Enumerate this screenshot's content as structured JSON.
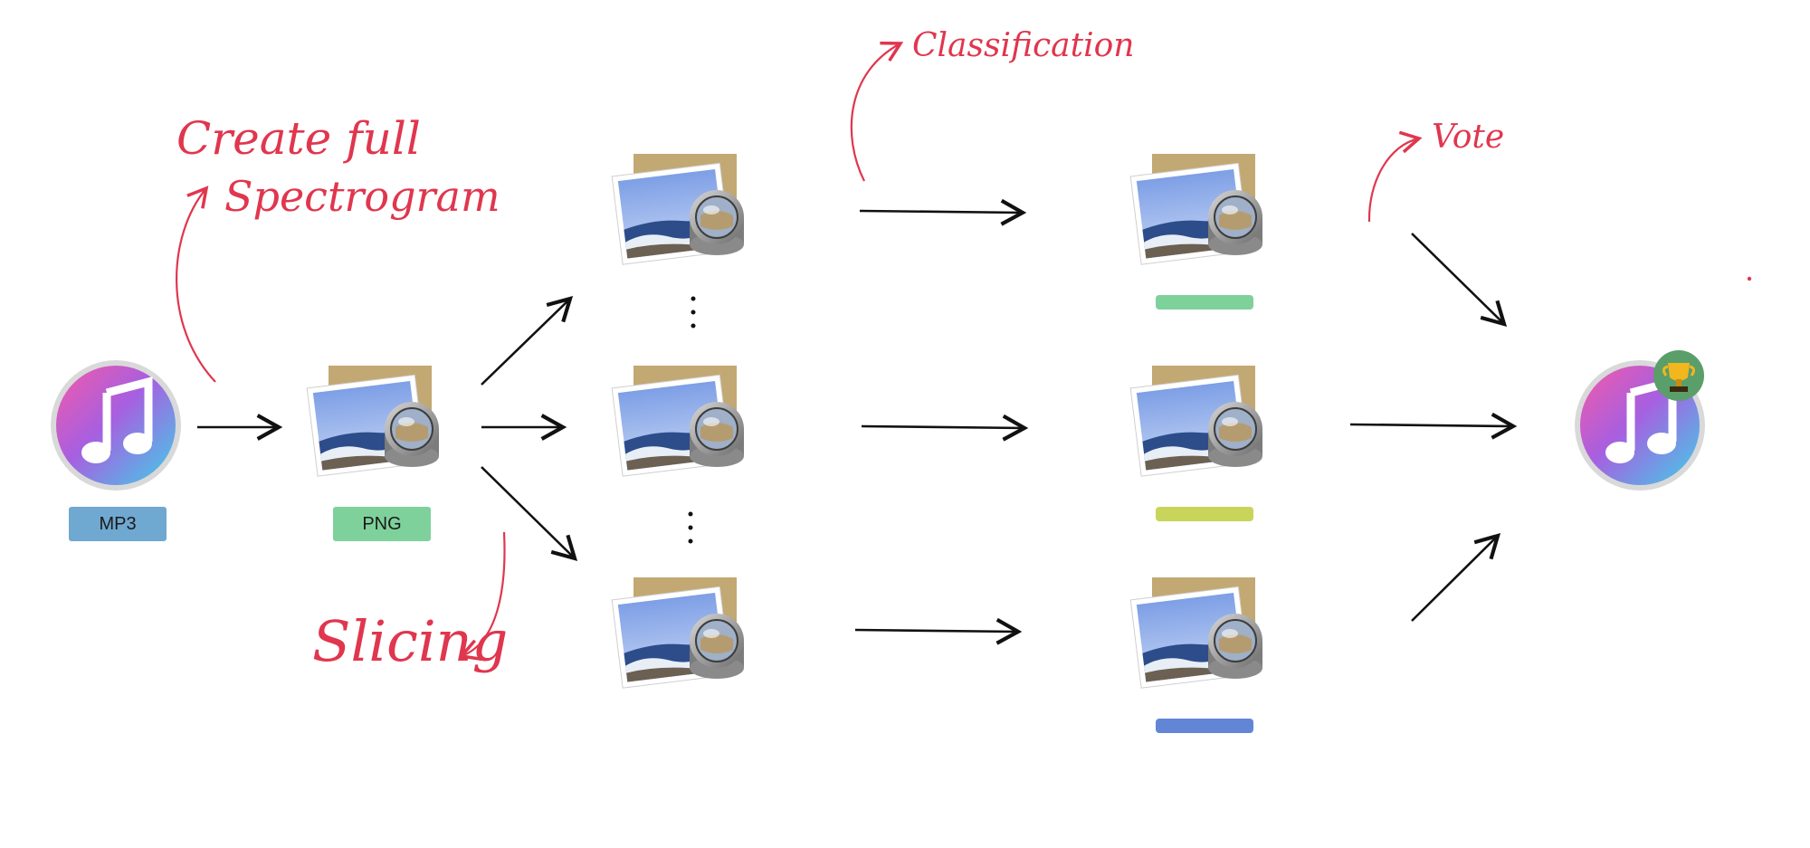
{
  "labels": {
    "input": "MP3",
    "spectrogram": "PNG"
  },
  "annotations": {
    "create": [
      "Create full",
      "Spectrogram"
    ],
    "slicing": "Slicing",
    "classification": "Classification",
    "vote": "Vote"
  },
  "icons": {
    "input": "music-note-icon",
    "image": "preview-photo-icon",
    "winner": "trophy-icon"
  },
  "colors": {
    "mp3_tag": "#6fa8d0",
    "png_tag": "#7fd19b",
    "class_1": "#7fd19b",
    "class_2": "#c8d45a",
    "class_3": "#6285d6",
    "annotation": "#e0364e",
    "arrow": "#111111"
  }
}
